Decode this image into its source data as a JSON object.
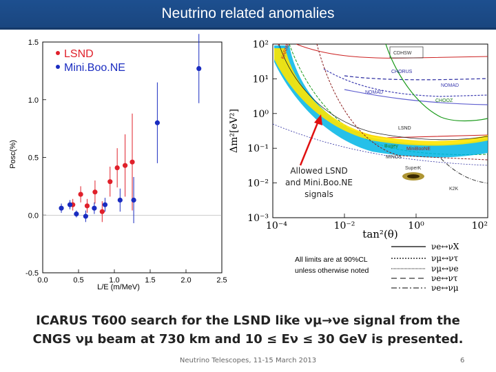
{
  "slide": {
    "title": "Neutrino related anomalies",
    "caption_line1": "ICARUS T600 search for the LSND like νμ→νe signal from the",
    "caption_line2": "CNGS νμ beam at 730 km and 10 ≤ Eν ≤ 30 GeV is presented.",
    "footer": "Neutrino Telescopes, 11-15 March 2013",
    "page_number": "6"
  },
  "chart_data": [
    {
      "type": "scatter",
      "title": "",
      "xlabel": "L/E (m/MeV)",
      "ylabel": "Posc(%)",
      "xlim": [
        0.0,
        2.5
      ],
      "ylim": [
        -0.5,
        1.5
      ],
      "xticks": [
        "0.0",
        "0.5",
        "1.0",
        "1.5",
        "2.0",
        "2.5"
      ],
      "yticks": [
        "-0.5",
        "0.0",
        "0.5",
        "1.0",
        "1.5"
      ],
      "legend_position": "top-left",
      "series": [
        {
          "name": "LSND",
          "color": "#e0202a",
          "points": [
            {
              "x": 0.42,
              "y": 0.09,
              "err": 0.05
            },
            {
              "x": 0.53,
              "y": 0.18,
              "err": 0.07
            },
            {
              "x": 0.62,
              "y": 0.08,
              "err": 0.06
            },
            {
              "x": 0.73,
              "y": 0.2,
              "err": 0.1
            },
            {
              "x": 0.83,
              "y": 0.03,
              "err": 0.09
            },
            {
              "x": 0.94,
              "y": 0.29,
              "err": 0.13
            },
            {
              "x": 1.04,
              "y": 0.41,
              "err": 0.17
            },
            {
              "x": 1.15,
              "y": 0.43,
              "err": 0.27
            },
            {
              "x": 1.25,
              "y": 0.46,
              "err": 0.42
            }
          ]
        },
        {
          "name": "Mini.Boo.NE",
          "color": "#1a2cc0",
          "points": [
            {
              "x": 0.26,
              "y": 0.06,
              "err": 0.04
            },
            {
              "x": 0.38,
              "y": 0.09,
              "err": 0.04
            },
            {
              "x": 0.47,
              "y": 0.01,
              "err": 0.03
            },
            {
              "x": 0.6,
              "y": -0.01,
              "err": 0.05
            },
            {
              "x": 0.72,
              "y": 0.06,
              "err": 0.05
            },
            {
              "x": 0.87,
              "y": 0.09,
              "err": 0.06
            },
            {
              "x": 1.08,
              "y": 0.13,
              "err": 0.1
            },
            {
              "x": 1.27,
              "y": 0.13,
              "err": 0.2
            },
            {
              "x": 1.6,
              "y": 0.8,
              "err": 0.35
            },
            {
              "x": 2.18,
              "y": 1.27,
              "err": 0.3
            }
          ]
        }
      ]
    },
    {
      "type": "exclusion-plot",
      "xlabel": "tan²(θ)",
      "ylabel": "Δm²[eV²]",
      "x_scale": "log",
      "y_scale": "log",
      "xlim": [
        0.0001,
        100
      ],
      "ylim": [
        0.001,
        100
      ],
      "xticks": [
        "10⁻⁴",
        "10⁻²",
        "10⁰",
        "10²"
      ],
      "yticks": [
        "10²",
        "10¹",
        "10⁰",
        "10⁻¹",
        "10⁻²",
        "10⁻³"
      ],
      "annotation": [
        "Allowed LSND",
        "and Mini.Boo.NE",
        "signals"
      ],
      "region_labels": [
        {
          "text": "CDHSW",
          "color": "#333333"
        },
        {
          "text": "CHORUS",
          "color": "#2a2aa0"
        },
        {
          "text": "NOMAD",
          "color": "#3a3ab0"
        },
        {
          "text": "NOMAD",
          "color": "#3a3ab0"
        },
        {
          "text": "CHOOZ",
          "color": "#1a7a1a"
        },
        {
          "text": "LSND",
          "color": "#222222"
        },
        {
          "text": "KARMEN",
          "color": "#cc2020"
        },
        {
          "text": "Bugey",
          "color": "#1a7a1a"
        },
        {
          "text": "MiniBooNE",
          "color": "#a02020"
        },
        {
          "text": "MINOS",
          "color": "#333333"
        },
        {
          "text": "SuperK",
          "color": "#333333"
        },
        {
          "text": "K2K",
          "color": "#333333"
        }
      ],
      "legend_note_line1": "All limits are at 90%CL",
      "legend_note_line2": "unless otherwise noted",
      "legend_entries": [
        "νe↔νX",
        "νμ↔ντ",
        "νμ↔νe",
        "νe↔ντ",
        "νe↔νμ"
      ]
    }
  ]
}
